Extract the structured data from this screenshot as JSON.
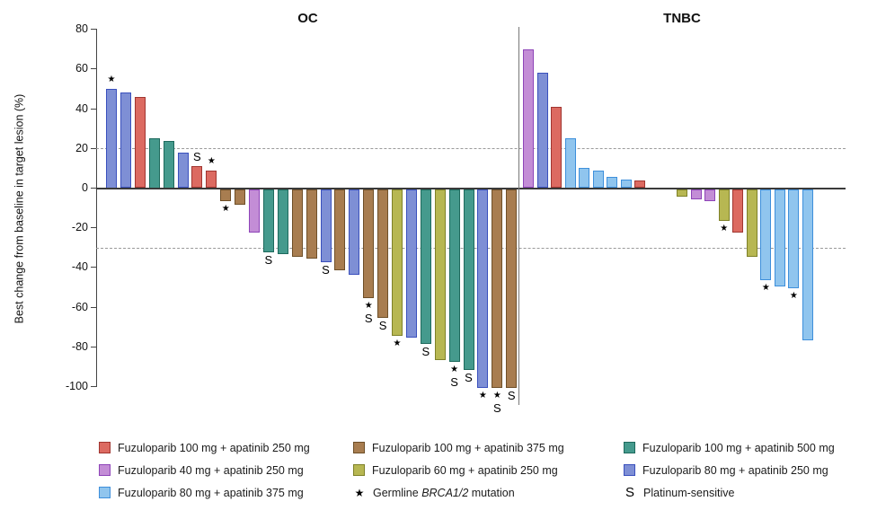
{
  "chart_data": {
    "type": "bar",
    "title": "",
    "ylabel": "Best change from baseline in target lesion (%)",
    "ylim": [
      -100,
      80
    ],
    "yticks": [
      80,
      60,
      40,
      20,
      0,
      -20,
      -40,
      -60,
      -80,
      -100
    ],
    "reference_lines": [
      20,
      -30
    ],
    "grid": "dashed reference lines at +20 and -30 only",
    "legend_position": "bottom",
    "markers": {
      "star": "Germline BRCA1/2 mutation",
      "S": "Platinum-sensitive"
    },
    "groups": {
      "red": {
        "label": "Fuzuloparib 100 mg + apatinib 250 mg",
        "fill": "#DC6A61",
        "stroke": "#A03530"
      },
      "brown": {
        "label": "Fuzuloparib 100 mg + apatinib 375 mg",
        "fill": "#A87D50",
        "stroke": "#6E4F28"
      },
      "teal": {
        "label": "Fuzuloparib 100 mg + apatinib 500 mg",
        "fill": "#459A8D",
        "stroke": "#1E6A5D"
      },
      "orchid": {
        "label": "Fuzuloparib 40 mg + apatinib 250 mg",
        "fill": "#C38DD6",
        "stroke": "#8E44B8"
      },
      "olive": {
        "label": "Fuzuloparib 60 mg + apatinib 250 mg",
        "fill": "#B7B752",
        "stroke": "#7E8128"
      },
      "blue": {
        "label": "Fuzuloparib 80 mg + apatinib 250 mg",
        "fill": "#7E8FD5",
        "stroke": "#3A50BD"
      },
      "lightblue": {
        "label": "Fuzuloparib 80 mg + apatinib 375 mg",
        "fill": "#90C5EE",
        "stroke": "#3E8FDB"
      }
    },
    "panels": [
      {
        "title": "OC",
        "key": "oc",
        "bars": [
          {
            "v": 50,
            "g": "blue",
            "m": "star"
          },
          {
            "v": 48,
            "g": "blue"
          },
          {
            "v": 46,
            "g": "red"
          },
          {
            "v": 25,
            "g": "teal"
          },
          {
            "v": 24,
            "g": "teal"
          },
          {
            "v": 18,
            "g": "blue"
          },
          {
            "v": 11,
            "g": "red",
            "m": "S"
          },
          {
            "v": 9,
            "g": "red",
            "m": "star"
          },
          {
            "v": -6,
            "g": "brown",
            "m": "star"
          },
          {
            "v": -8,
            "g": "brown"
          },
          {
            "v": -22,
            "g": "orchid"
          },
          {
            "v": -32,
            "g": "teal",
            "m": "S"
          },
          {
            "v": -33,
            "g": "teal"
          },
          {
            "v": -34,
            "g": "brown"
          },
          {
            "v": -35,
            "g": "brown"
          },
          {
            "v": -37,
            "g": "blue",
            "m": "S"
          },
          {
            "v": -41,
            "g": "brown"
          },
          {
            "v": -43,
            "g": "blue"
          },
          {
            "v": -55,
            "g": "brown",
            "m": "star+S"
          },
          {
            "v": -65,
            "g": "brown",
            "m": "S"
          },
          {
            "v": -74,
            "g": "olive",
            "m": "star"
          },
          {
            "v": -75,
            "g": "blue"
          },
          {
            "v": -78,
            "g": "teal",
            "m": "S"
          },
          {
            "v": -86,
            "g": "olive"
          },
          {
            "v": -87,
            "g": "teal",
            "m": "star+S"
          },
          {
            "v": -91,
            "g": "teal",
            "m": "S"
          },
          {
            "v": -100,
            "g": "blue",
            "m": "star"
          },
          {
            "v": -100,
            "g": "brown",
            "m": "star+S"
          },
          {
            "v": -100,
            "g": "brown",
            "m": "S"
          }
        ]
      },
      {
        "title": "TNBC",
        "key": "tnbc",
        "bars": [
          {
            "v": 70,
            "g": "orchid"
          },
          {
            "v": 58,
            "g": "blue"
          },
          {
            "v": 41,
            "g": "red"
          },
          {
            "v": 25,
            "g": "lightblue"
          },
          {
            "v": 10,
            "g": "lightblue"
          },
          {
            "v": 9,
            "g": "lightblue"
          },
          {
            "v": 5.5,
            "g": "lightblue"
          },
          {
            "v": 4.5,
            "g": "lightblue"
          },
          {
            "v": 4,
            "g": "red"
          },
          {
            "v": -4,
            "g": "olive",
            "gap": 2
          },
          {
            "v": -5,
            "g": "orchid"
          },
          {
            "v": -6,
            "g": "orchid"
          },
          {
            "v": -16,
            "g": "olive",
            "m": "star"
          },
          {
            "v": -22,
            "g": "red"
          },
          {
            "v": -34,
            "g": "olive"
          },
          {
            "v": -46,
            "g": "lightblue",
            "m": "star"
          },
          {
            "v": -49,
            "g": "lightblue"
          },
          {
            "v": -50,
            "g": "lightblue",
            "m": "star"
          },
          {
            "v": -76,
            "g": "lightblue"
          }
        ]
      }
    ],
    "legend": {
      "columns": [
        [
          {
            "swatch": "red",
            "label": "Fuzuloparib 100 mg + apatinib 250 mg"
          },
          {
            "swatch": "orchid",
            "label": "Fuzuloparib 40 mg + apatinib 250 mg"
          },
          {
            "swatch": "lightblue",
            "label": "Fuzuloparib 80 mg + apatinib 375 mg"
          }
        ],
        [
          {
            "swatch": "brown",
            "label": "Fuzuloparib 100 mg + apatinib 375 mg"
          },
          {
            "swatch": "olive",
            "label": "Fuzuloparib 60 mg + apatinib 250 mg"
          },
          {
            "symbol": "star",
            "label_pre": "Germline ",
            "label_italic": "BRCA1/2",
            "label_post": " mutation"
          }
        ],
        [
          {
            "swatch": "teal",
            "label": "Fuzuloparib 100 mg + apatinib 500 mg"
          },
          {
            "swatch": "blue",
            "label": "Fuzuloparib 80 mg + apatinib 250 mg"
          },
          {
            "symbol": "S",
            "label": "Platinum-sensitive"
          }
        ]
      ]
    }
  }
}
